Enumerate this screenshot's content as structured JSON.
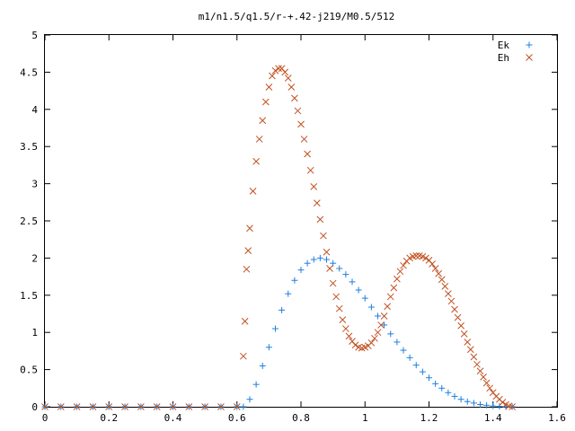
{
  "chart_data": {
    "type": "scatter",
    "title": "m1/n1.5/q1.5/r-+.42-j219/M0.5/512",
    "xlabel": "",
    "ylabel": "",
    "xlim": [
      0,
      1.6
    ],
    "ylim": [
      0,
      5
    ],
    "x_ticks": [
      "0",
      "0.2",
      "0.4",
      "0.6",
      "0.8",
      "1",
      "1.2",
      "1.4",
      "1.6"
    ],
    "y_ticks": [
      "0",
      "0.5",
      "1",
      "1.5",
      "2",
      "2.5",
      "3",
      "3.5",
      "4",
      "4.5",
      "5"
    ],
    "grid": false,
    "legend": "top-right",
    "series": [
      {
        "name": "Ek",
        "marker": "plus",
        "color": "#1f7fdf",
        "points": [
          [
            0.0,
            0
          ],
          [
            0.05,
            0
          ],
          [
            0.1,
            0
          ],
          [
            0.15,
            0
          ],
          [
            0.2,
            0
          ],
          [
            0.25,
            0
          ],
          [
            0.3,
            0
          ],
          [
            0.35,
            0
          ],
          [
            0.4,
            0
          ],
          [
            0.45,
            0
          ],
          [
            0.5,
            0
          ],
          [
            0.55,
            0
          ],
          [
            0.6,
            0
          ],
          [
            0.62,
            0
          ],
          [
            0.64,
            0.1
          ],
          [
            0.66,
            0.3
          ],
          [
            0.68,
            0.55
          ],
          [
            0.7,
            0.8
          ],
          [
            0.72,
            1.05
          ],
          [
            0.74,
            1.3
          ],
          [
            0.76,
            1.52
          ],
          [
            0.78,
            1.7
          ],
          [
            0.8,
            1.84
          ],
          [
            0.82,
            1.93
          ],
          [
            0.84,
            1.98
          ],
          [
            0.86,
            2.0
          ],
          [
            0.88,
            1.98
          ],
          [
            0.9,
            1.93
          ],
          [
            0.92,
            1.86
          ],
          [
            0.94,
            1.78
          ],
          [
            0.96,
            1.68
          ],
          [
            0.98,
            1.57
          ],
          [
            1.0,
            1.46
          ],
          [
            1.02,
            1.34
          ],
          [
            1.04,
            1.22
          ],
          [
            1.06,
            1.1
          ],
          [
            1.08,
            0.98
          ],
          [
            1.1,
            0.87
          ],
          [
            1.12,
            0.76
          ],
          [
            1.14,
            0.66
          ],
          [
            1.16,
            0.56
          ],
          [
            1.18,
            0.47
          ],
          [
            1.2,
            0.39
          ],
          [
            1.22,
            0.31
          ],
          [
            1.24,
            0.25
          ],
          [
            1.26,
            0.19
          ],
          [
            1.28,
            0.14
          ],
          [
            1.3,
            0.1
          ],
          [
            1.32,
            0.07
          ],
          [
            1.34,
            0.05
          ],
          [
            1.36,
            0.03
          ],
          [
            1.38,
            0.02
          ],
          [
            1.4,
            0.01
          ],
          [
            1.42,
            0.005
          ],
          [
            1.44,
            0
          ],
          [
            1.46,
            0
          ]
        ]
      },
      {
        "name": "Eh",
        "marker": "cross",
        "color": "#c05020",
        "points": [
          [
            0.0,
            0
          ],
          [
            0.05,
            0
          ],
          [
            0.1,
            0
          ],
          [
            0.15,
            0
          ],
          [
            0.2,
            0
          ],
          [
            0.25,
            0
          ],
          [
            0.3,
            0
          ],
          [
            0.35,
            0
          ],
          [
            0.4,
            0
          ],
          [
            0.45,
            0
          ],
          [
            0.5,
            0
          ],
          [
            0.55,
            0
          ],
          [
            0.6,
            0
          ],
          [
            0.62,
            0.68
          ],
          [
            0.625,
            1.15
          ],
          [
            0.63,
            1.85
          ],
          [
            0.635,
            2.1
          ],
          [
            0.64,
            2.4
          ],
          [
            0.65,
            2.9
          ],
          [
            0.66,
            3.3
          ],
          [
            0.67,
            3.6
          ],
          [
            0.68,
            3.85
          ],
          [
            0.69,
            4.1
          ],
          [
            0.7,
            4.3
          ],
          [
            0.71,
            4.45
          ],
          [
            0.72,
            4.52
          ],
          [
            0.73,
            4.55
          ],
          [
            0.74,
            4.55
          ],
          [
            0.75,
            4.5
          ],
          [
            0.76,
            4.42
          ],
          [
            0.77,
            4.3
          ],
          [
            0.78,
            4.15
          ],
          [
            0.79,
            3.98
          ],
          [
            0.8,
            3.8
          ],
          [
            0.81,
            3.6
          ],
          [
            0.82,
            3.4
          ],
          [
            0.83,
            3.18
          ],
          [
            0.84,
            2.96
          ],
          [
            0.85,
            2.74
          ],
          [
            0.86,
            2.52
          ],
          [
            0.87,
            2.3
          ],
          [
            0.88,
            2.08
          ],
          [
            0.89,
            1.86
          ],
          [
            0.9,
            1.66
          ],
          [
            0.91,
            1.48
          ],
          [
            0.92,
            1.32
          ],
          [
            0.93,
            1.17
          ],
          [
            0.94,
            1.05
          ],
          [
            0.95,
            0.95
          ],
          [
            0.96,
            0.88
          ],
          [
            0.97,
            0.83
          ],
          [
            0.98,
            0.8
          ],
          [
            0.99,
            0.79
          ],
          [
            1.0,
            0.8
          ],
          [
            1.01,
            0.82
          ],
          [
            1.02,
            0.86
          ],
          [
            1.03,
            0.92
          ],
          [
            1.04,
            1.0
          ],
          [
            1.05,
            1.1
          ],
          [
            1.06,
            1.22
          ],
          [
            1.07,
            1.35
          ],
          [
            1.08,
            1.48
          ],
          [
            1.09,
            1.6
          ],
          [
            1.1,
            1.72
          ],
          [
            1.11,
            1.82
          ],
          [
            1.12,
            1.9
          ],
          [
            1.13,
            1.96
          ],
          [
            1.14,
            2.0
          ],
          [
            1.15,
            2.02
          ],
          [
            1.16,
            2.03
          ],
          [
            1.17,
            2.03
          ],
          [
            1.18,
            2.02
          ],
          [
            1.19,
            2.0
          ],
          [
            1.2,
            1.97
          ],
          [
            1.21,
            1.92
          ],
          [
            1.22,
            1.86
          ],
          [
            1.23,
            1.79
          ],
          [
            1.24,
            1.71
          ],
          [
            1.25,
            1.62
          ],
          [
            1.26,
            1.52
          ],
          [
            1.27,
            1.42
          ],
          [
            1.28,
            1.31
          ],
          [
            1.29,
            1.2
          ],
          [
            1.3,
            1.09
          ],
          [
            1.31,
            0.98
          ],
          [
            1.32,
            0.87
          ],
          [
            1.33,
            0.77
          ],
          [
            1.34,
            0.67
          ],
          [
            1.35,
            0.57
          ],
          [
            1.36,
            0.48
          ],
          [
            1.37,
            0.4
          ],
          [
            1.38,
            0.32
          ],
          [
            1.39,
            0.25
          ],
          [
            1.4,
            0.19
          ],
          [
            1.41,
            0.14
          ],
          [
            1.42,
            0.1
          ],
          [
            1.43,
            0.06
          ],
          [
            1.44,
            0.03
          ],
          [
            1.45,
            0.01
          ],
          [
            1.46,
            0
          ]
        ]
      }
    ]
  }
}
